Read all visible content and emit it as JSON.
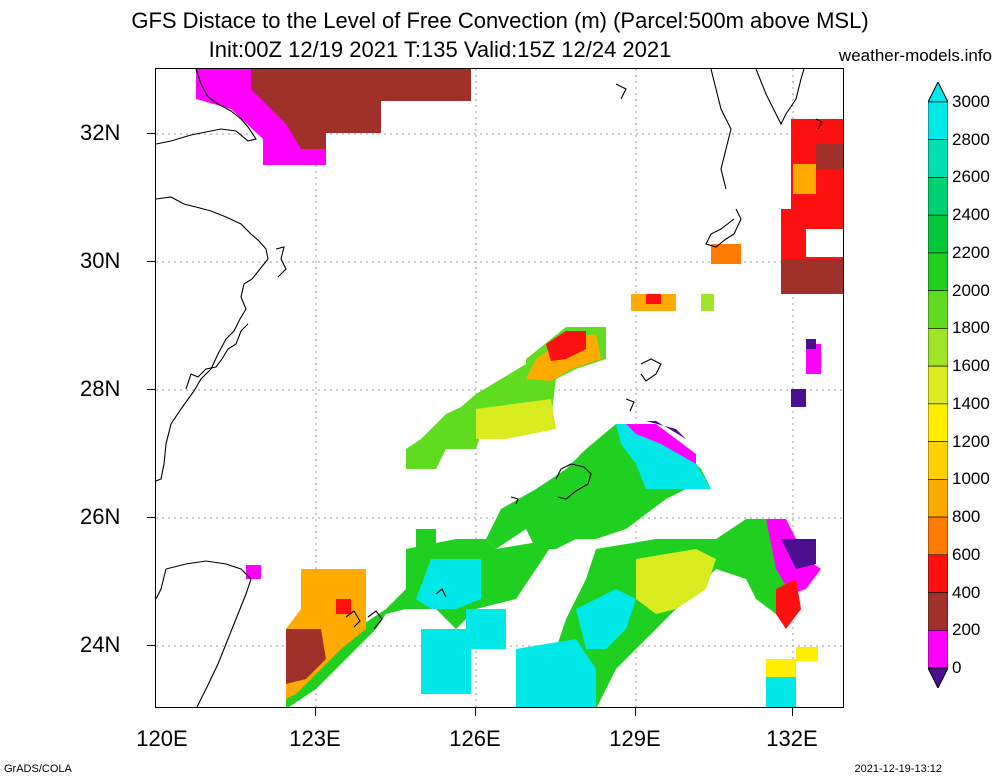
{
  "header": {
    "title_line1": "GFS Distace to the Level of Free Convection (m) (Parcel:500m above MSL)",
    "title_line2": "Init:00Z 12/19 2021 T:135 Valid:15Z 12/24 2021",
    "site": "weather-models.info"
  },
  "axes": {
    "lat_labels": [
      "32N",
      "30N",
      "28N",
      "26N",
      "24N"
    ],
    "lon_labels": [
      "120E",
      "123E",
      "126E",
      "129E",
      "132E"
    ]
  },
  "colorbar": {
    "labels": [
      "3000",
      "2800",
      "2600",
      "2400",
      "2200",
      "2000",
      "1800",
      "1600",
      "1400",
      "1200",
      "1000",
      "800",
      "600",
      "400",
      "200",
      "0"
    ],
    "colors": [
      "#ffffff",
      "#00e8e8",
      "#00e0b0",
      "#00d070",
      "#00c838",
      "#20d020",
      "#60dc20",
      "#a0e428",
      "#d8ec20",
      "#ffee00",
      "#ffd000",
      "#ffaa00",
      "#ff7a00",
      "#ff1010",
      "#a0302a",
      "#ff00ff",
      "#4b0f8f"
    ]
  },
  "footer": {
    "left": "GrADS/COLA",
    "right": "2021-12-19-13:12"
  }
}
